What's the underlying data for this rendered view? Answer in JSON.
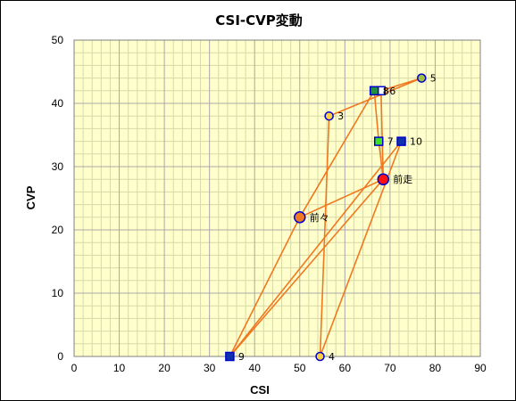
{
  "chart_data": {
    "type": "scatter",
    "title": "CSI-CVP変動",
    "xlabel": "CSI",
    "ylabel": "CVP",
    "xlim": [
      0,
      90
    ],
    "ylim": [
      0,
      50
    ],
    "xticks": [
      0,
      10,
      20,
      30,
      40,
      50,
      60,
      70,
      80,
      90
    ],
    "yticks": [
      0,
      10,
      20,
      30,
      40,
      50
    ],
    "grid": true,
    "minor_grid": true,
    "plot_background": "#FFFFCC",
    "line_color": "#F07820",
    "connection_order": [
      "9",
      "前々",
      "8",
      "7",
      "前走",
      "9",
      "10",
      "4",
      "3",
      "5",
      "6",
      "前走",
      "前々"
    ],
    "points": [
      {
        "label": "3",
        "x": 56.5,
        "y": 38,
        "marker": "circle",
        "fill": "#FFD040",
        "stroke": "#0000CC",
        "size": "small"
      },
      {
        "label": "4",
        "x": 54.5,
        "y": 0,
        "marker": "circle",
        "fill": "#FFD040",
        "stroke": "#0000CC",
        "size": "small"
      },
      {
        "label": "5",
        "x": 77,
        "y": 44,
        "marker": "circle",
        "fill": "#A0C040",
        "stroke": "#0000CC",
        "size": "small"
      },
      {
        "label": "6",
        "x": 68,
        "y": 42,
        "marker": "square",
        "fill": "#FFFFFF",
        "stroke": "#0000CC",
        "size": "small"
      },
      {
        "label": "7",
        "x": 67.5,
        "y": 34,
        "marker": "square",
        "fill": "#40E020",
        "stroke": "#0000CC",
        "size": "small"
      },
      {
        "label": "8",
        "x": 66.5,
        "y": 42,
        "marker": "square",
        "fill": "#209040",
        "stroke": "#0000CC",
        "size": "small"
      },
      {
        "label": "9",
        "x": 34.5,
        "y": 0,
        "marker": "square",
        "fill": "#1030B0",
        "stroke": "#0000CC",
        "size": "small"
      },
      {
        "label": "10",
        "x": 72.5,
        "y": 34,
        "marker": "square",
        "fill": "#1030B0",
        "stroke": "#0000CC",
        "size": "small"
      },
      {
        "label": "前走",
        "x": 68.5,
        "y": 28,
        "marker": "circle",
        "fill": "#FF1010",
        "stroke": "#0000CC",
        "size": "large"
      },
      {
        "label": "前々",
        "x": 50,
        "y": 22,
        "marker": "circle",
        "fill": "#F07820",
        "stroke": "#0000CC",
        "size": "large"
      }
    ]
  }
}
